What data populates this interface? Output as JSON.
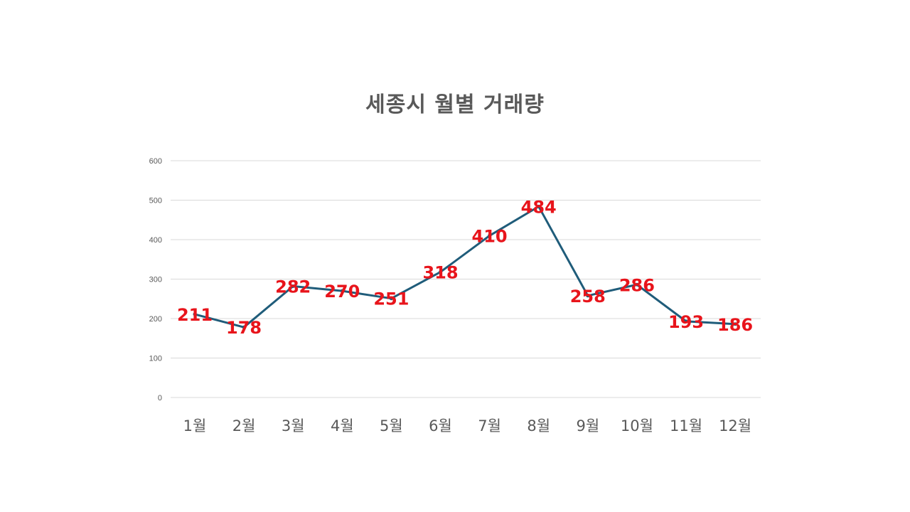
{
  "chart_data": {
    "type": "line",
    "title": "세종시 월별 거래량",
    "categories": [
      "1월",
      "2월",
      "3월",
      "4월",
      "5월",
      "6월",
      "7월",
      "8월",
      "9월",
      "10월",
      "11월",
      "12월"
    ],
    "series": [
      {
        "values": [
          211,
          178,
          282,
          270,
          251,
          318,
          410,
          484,
          258,
          286,
          193,
          186
        ],
        "color": "#1f5c7a"
      }
    ],
    "ylim": [
      0,
      600
    ],
    "yticks": [
      "0",
      "100",
      "200",
      "300",
      "400",
      "500",
      "600"
    ],
    "grid": true,
    "data_label_color": "#e8141b",
    "legend": "none"
  }
}
